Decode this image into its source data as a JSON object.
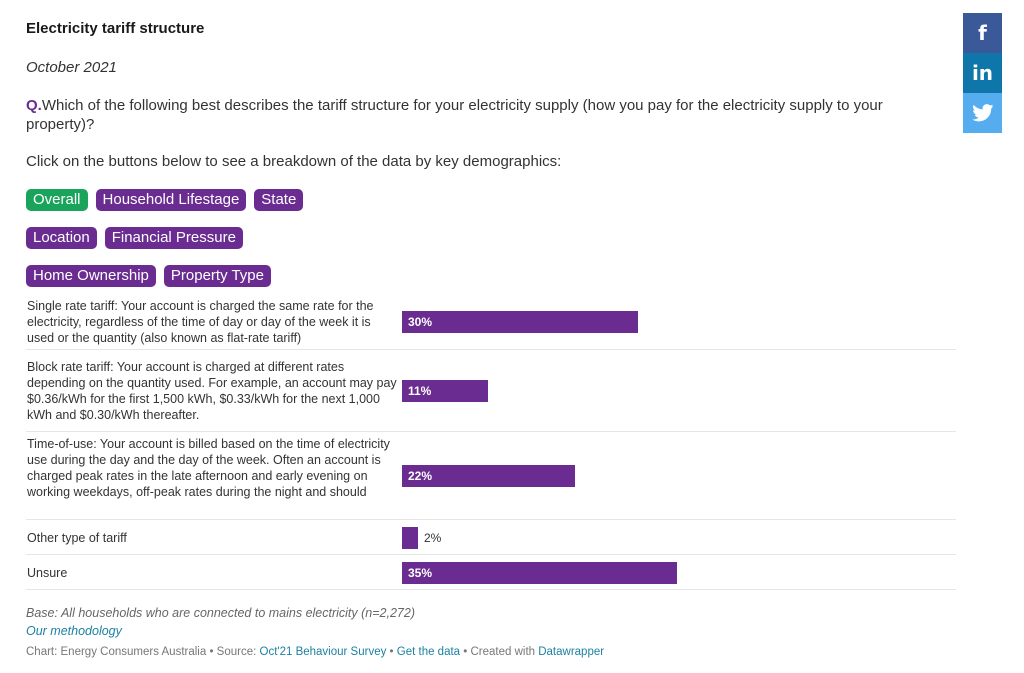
{
  "header": {
    "title": "Electricity tariff structure",
    "date": "October 2021",
    "question_prefix": "Q.",
    "question": "Which of the following best describes the tariff structure for your electricity supply (how you pay for the electricity supply to your property)?",
    "instruction": "Click on the buttons below to see a breakdown of the data by key demographics:"
  },
  "buttons": {
    "row1": [
      {
        "label": "Overall",
        "active": true
      },
      {
        "label": "Household Lifestage",
        "active": false
      },
      {
        "label": "State",
        "active": false
      }
    ],
    "row2": [
      {
        "label": "Location",
        "active": false
      },
      {
        "label": "Financial Pressure",
        "active": false
      }
    ],
    "row3": [
      {
        "label": "Home Ownership",
        "active": false
      },
      {
        "label": "Property Type",
        "active": false
      }
    ]
  },
  "chart_data": {
    "type": "bar",
    "orientation": "horizontal",
    "categories": [
      "Single rate tariff: Your account is charged the same rate for the electricity, regardless of the time of day or day of the week it is used or the quantity (also known as flat-rate tariff)",
      "Block rate tariff: Your account is charged at different rates depending on the quantity used. For example, an account may pay $0.36/kWh for the first 1,500 kWh, $0.33/kWh for the next 1,000 kWh and $0.30/kWh thereafter.",
      "Time-of-use: Your account is billed based on the time of electricity use during the day and the day of the week. Often an account is charged peak rates in the late afternoon and early evening on working weekdays, off-peak rates during the night and should",
      "Other type of tariff",
      "Unsure"
    ],
    "values": [
      30,
      11,
      22,
      2,
      35
    ],
    "value_labels": [
      "30%",
      "11%",
      "22%",
      "2%",
      "35%"
    ],
    "bar_color": "#6a2c91",
    "xlim": [
      0,
      100
    ]
  },
  "notes": {
    "base": "Base: All households who are connected to mains electricity (n=2,272)",
    "methodology": "Our methodology"
  },
  "footer": {
    "chart_prefix": "Chart: Energy Consumers Australia • Source: ",
    "source_link": "Oct'21 Behaviour Survey",
    "sep1": " • ",
    "data_link": "Get the data",
    "sep2": " • Created with ",
    "dw_link": "Datawrapper"
  },
  "social": {
    "facebook": "f",
    "linkedin": "in",
    "twitter_icon": "twitter-bird-icon"
  },
  "colors": {
    "accent": "#6a2c91",
    "active_button": "#1aa35b",
    "link": "#1d81a2"
  }
}
